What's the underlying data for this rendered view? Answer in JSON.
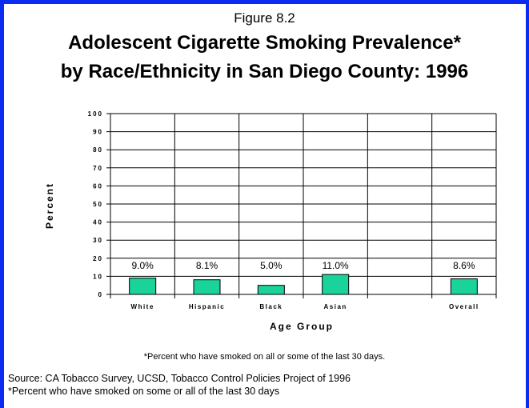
{
  "figure_label": "Figure 8.2",
  "title_line1": "Adolescent Cigarette Smoking Prevalence*",
  "title_line2": "by Race/Ethnicity in San Diego County: 1996",
  "footnote": "*Percent who have smoked on all or some of the last 30 days.",
  "source_line1": "Source: CA Tobacco Survey, UCSD, Tobacco Control Policies Project of 1996",
  "source_line2": "*Percent who have smoked on some or all of the last 30 days",
  "colors": {
    "bar": "#1ad39a",
    "border": "#0a2cf0"
  },
  "chart_data": {
    "type": "bar",
    "categories": [
      "White",
      "Hispanic",
      "Black",
      "Asian",
      "",
      "Overall"
    ],
    "values": [
      9.0,
      8.1,
      5.0,
      11.0,
      null,
      8.6
    ],
    "data_labels": [
      "9.0%",
      "8.1%",
      "5.0%",
      "11.0%",
      "",
      "8.6%"
    ],
    "xlabel": "Age Group",
    "ylabel": "Percent",
    "ylim": [
      0,
      100
    ],
    "yticks": [
      "0",
      "10",
      "20",
      "30",
      "40",
      "50",
      "60",
      "70",
      "80",
      "90",
      "100"
    ],
    "grid": true,
    "legend": "none"
  }
}
